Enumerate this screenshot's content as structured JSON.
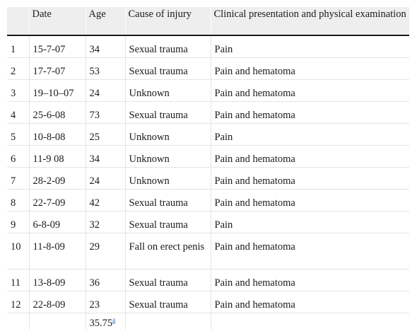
{
  "table": {
    "headers": [
      "",
      "Date",
      "Age",
      "Cause of injury",
      "Clinical presentation and physical examination"
    ],
    "rows": [
      {
        "n": "1",
        "date": "15-7-07",
        "age": "34",
        "cause": "Sexual trauma",
        "clinical": "Pain"
      },
      {
        "n": "2",
        "date": "17-7-07",
        "age": "53",
        "cause": "Sexual trauma",
        "clinical": "Pain and hematoma"
      },
      {
        "n": "3",
        "date": "19–10–07",
        "age": "24",
        "cause": "Unknown",
        "clinical": "Pain and hematoma"
      },
      {
        "n": "4",
        "date": "25-6-08",
        "age": "73",
        "cause": "Sexual trauma",
        "clinical": "Pain and hematoma"
      },
      {
        "n": "5",
        "date": "10-8-08",
        "age": "25",
        "cause": "Unknown",
        "clinical": "Pain"
      },
      {
        "n": "6",
        "date": "11-9 08",
        "age": "34",
        "cause": "Unknown",
        "clinical": "Pain and hematoma"
      },
      {
        "n": "7",
        "date": "28-2-09",
        "age": "24",
        "cause": "Unknown",
        "clinical": "Pain and hematoma"
      },
      {
        "n": "8",
        "date": "22-7-09",
        "age": "42",
        "cause": "Sexual trauma",
        "clinical": "Pain and hematoma"
      },
      {
        "n": "9",
        "date": "6-8-09",
        "age": "32",
        "cause": "Sexual trauma",
        "clinical": "Pain"
      },
      {
        "n": "10",
        "date": "11-8-09",
        "age": "29",
        "cause": "Fall on erect penis",
        "clinical": "Pain and hematoma"
      },
      {
        "n": "11",
        "date": "13-8-09",
        "age": "36",
        "cause": "Sexual trauma",
        "clinical": "Pain and hematoma"
      },
      {
        "n": "12",
        "date": "22-8-09",
        "age": "23",
        "cause": "Sexual trauma",
        "clinical": "Pain and hematoma"
      }
    ],
    "footer": {
      "age_mean": "35.75",
      "footnote_marker": "a"
    }
  },
  "colors": {
    "header_bg": "#eeeeee",
    "rule": "#1a1a1a",
    "grid": "#e4e4e4",
    "link": "#1a5ec7"
  }
}
